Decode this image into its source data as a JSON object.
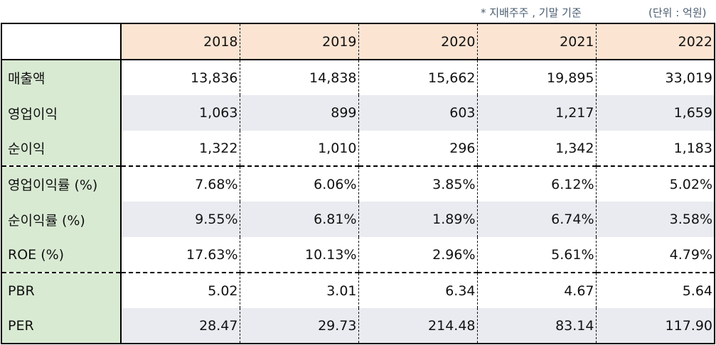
{
  "notes": {
    "basis": "* 지배주주 , 기말 기준",
    "unit": "(단위 : 억원)"
  },
  "years": [
    "2018",
    "2019",
    "2020",
    "2021",
    "2022"
  ],
  "rows": [
    {
      "label": "매출액",
      "values": [
        "13,836",
        "14,838",
        "15,662",
        "19,895",
        "33,019"
      ]
    },
    {
      "label": "영업이익",
      "values": [
        "1,063",
        "899",
        "603",
        "1,217",
        "1,659"
      ]
    },
    {
      "label": "순이익",
      "values": [
        "1,322",
        "1,010",
        "296",
        "1,342",
        "1,183"
      ]
    },
    {
      "label": "영업이익률 (%)",
      "values": [
        "7.68%",
        "6.06%",
        "3.85%",
        "6.12%",
        "5.02%"
      ]
    },
    {
      "label": "순이익률 (%)",
      "values": [
        "9.55%",
        "6.81%",
        "1.89%",
        "6.74%",
        "3.58%"
      ]
    },
    {
      "label": "ROE (%)",
      "values": [
        "17.63%",
        "10.13%",
        "2.96%",
        "5.61%",
        "4.79%"
      ]
    },
    {
      "label": "PBR",
      "values": [
        "5.02",
        "3.01",
        "6.34",
        "4.67",
        "5.64"
      ]
    },
    {
      "label": "PER",
      "values": [
        "28.47",
        "29.73",
        "214.48",
        "83.14",
        "117.90"
      ]
    }
  ],
  "colors": {
    "header_bg": "#fbe4d2",
    "label_bg": "#d9ead3",
    "alt_row_bg": "#e9ebf0",
    "note_text": "#4a5d70"
  }
}
